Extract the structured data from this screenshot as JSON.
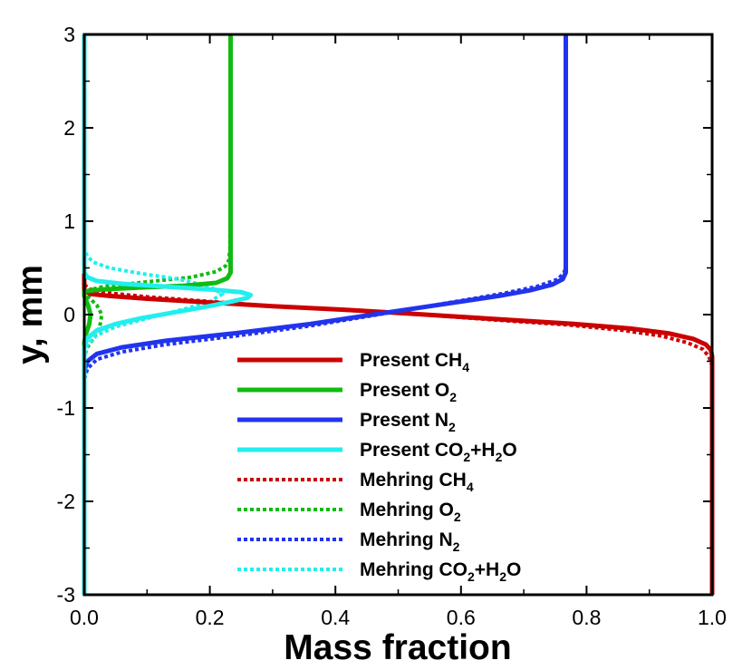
{
  "chart_data": {
    "type": "line",
    "title": "",
    "xlabel": "Mass fraction",
    "ylabel": "y, mm",
    "xlim": [
      0.0,
      1.0
    ],
    "ylim": [
      -3,
      3
    ],
    "xticks": [
      0.0,
      0.2,
      0.4,
      0.6,
      0.8,
      1.0
    ],
    "xtick_labels": [
      "0.0",
      "0.2",
      "0.4",
      "0.6",
      "0.8",
      "1.0"
    ],
    "yticks": [
      -3,
      -2,
      -1,
      0,
      1,
      2,
      3
    ],
    "ytick_labels": [
      "-3",
      "-2",
      "-1",
      "0",
      "1",
      "2",
      "3"
    ],
    "grid": false,
    "legend_position": "lower-center",
    "series": [
      {
        "name": "Present CH4",
        "label_parts": [
          [
            "Present CH",
            ""
          ],
          [
            "4",
            "sub"
          ]
        ],
        "color": "#cc0000",
        "style": "solid",
        "x": [
          1.0,
          1.0,
          0.998,
          0.99,
          0.97,
          0.93,
          0.87,
          0.78,
          0.66,
          0.52,
          0.42,
          0.3,
          0.2,
          0.1,
          0.04,
          0.01,
          0.0,
          0.0
        ],
        "y": [
          -3.0,
          -0.45,
          -0.38,
          -0.32,
          -0.26,
          -0.2,
          -0.15,
          -0.1,
          -0.05,
          0.01,
          0.05,
          0.09,
          0.13,
          0.17,
          0.2,
          0.22,
          0.26,
          3.0
        ]
      },
      {
        "name": "Present O2",
        "label_parts": [
          [
            "Present O",
            ""
          ],
          [
            "2",
            "sub"
          ]
        ],
        "color": "#11bb11",
        "style": "solid",
        "x": [
          0.0,
          0.0,
          0.0,
          0.003,
          0.008,
          0.01,
          0.006,
          0.0,
          0.0,
          0.03,
          0.09,
          0.16,
          0.21,
          0.228,
          0.233,
          0.233,
          0.233
        ],
        "y": [
          -3.0,
          -0.4,
          -0.3,
          -0.2,
          -0.1,
          0.0,
          0.1,
          0.2,
          0.25,
          0.27,
          0.29,
          0.31,
          0.34,
          0.39,
          0.45,
          0.6,
          3.0
        ]
      },
      {
        "name": "Present N2",
        "label_parts": [
          [
            "Present N",
            ""
          ],
          [
            "2",
            "sub"
          ]
        ],
        "color": "#2233ee",
        "style": "solid",
        "x": [
          0.0,
          0.0,
          0.005,
          0.02,
          0.06,
          0.13,
          0.24,
          0.36,
          0.45,
          0.53,
          0.6,
          0.66,
          0.71,
          0.745,
          0.762,
          0.767,
          0.767
        ],
        "y": [
          -3.0,
          -0.6,
          -0.5,
          -0.42,
          -0.35,
          -0.28,
          -0.2,
          -0.1,
          -0.01,
          0.07,
          0.14,
          0.2,
          0.26,
          0.32,
          0.38,
          0.45,
          3.0
        ]
      },
      {
        "name": "Present CO2+H2O",
        "label_parts": [
          [
            "Present CO",
            ""
          ],
          [
            "2",
            "sub"
          ],
          [
            "+H",
            ""
          ],
          [
            "2",
            "sub"
          ],
          [
            "O",
            ""
          ]
        ],
        "color": "#22eeee",
        "style": "solid",
        "x": [
          0.0,
          0.0,
          0.005,
          0.02,
          0.05,
          0.09,
          0.14,
          0.19,
          0.235,
          0.26,
          0.265,
          0.25,
          0.2,
          0.13,
          0.06,
          0.02,
          0.005,
          0.0,
          0.0
        ],
        "y": [
          -3.0,
          -0.35,
          -0.25,
          -0.17,
          -0.1,
          -0.04,
          0.02,
          0.08,
          0.14,
          0.18,
          0.21,
          0.24,
          0.27,
          0.3,
          0.33,
          0.36,
          0.4,
          0.45,
          3.0
        ]
      },
      {
        "name": "Mehring CH4",
        "label_parts": [
          [
            "Mehring CH",
            ""
          ],
          [
            "4",
            "sub"
          ]
        ],
        "color": "#cc0000",
        "style": "dotted",
        "x": [
          1.0,
          1.0,
          0.995,
          0.985,
          0.96,
          0.92,
          0.86,
          0.77,
          0.66,
          0.52,
          0.42,
          0.3,
          0.2,
          0.1,
          0.04,
          0.01,
          0.0,
          0.0
        ],
        "y": [
          -3.0,
          -0.55,
          -0.45,
          -0.37,
          -0.3,
          -0.23,
          -0.17,
          -0.11,
          -0.06,
          0.01,
          0.05,
          0.09,
          0.14,
          0.19,
          0.23,
          0.27,
          0.32,
          3.0
        ]
      },
      {
        "name": "Mehring O2",
        "label_parts": [
          [
            "Mehring O",
            ""
          ],
          [
            "2",
            "sub"
          ]
        ],
        "color": "#11bb11",
        "style": "dotted",
        "x": [
          0.0,
          0.0,
          0.005,
          0.015,
          0.025,
          0.028,
          0.02,
          0.008,
          0.0,
          0.0,
          0.03,
          0.1,
          0.17,
          0.21,
          0.225,
          0.23,
          0.232,
          0.233
        ],
        "y": [
          -3.0,
          -0.45,
          -0.35,
          -0.25,
          -0.12,
          0.0,
          0.1,
          0.18,
          0.22,
          0.25,
          0.3,
          0.35,
          0.4,
          0.46,
          0.52,
          0.58,
          0.7,
          3.0
        ]
      },
      {
        "name": "Mehring N2",
        "label_parts": [
          [
            "Mehring N",
            ""
          ],
          [
            "2",
            "sub"
          ]
        ],
        "color": "#2233ee",
        "style": "dotted",
        "x": [
          0.0,
          0.0,
          0.005,
          0.02,
          0.06,
          0.13,
          0.24,
          0.36,
          0.45,
          0.53,
          0.6,
          0.67,
          0.72,
          0.755,
          0.765,
          0.767,
          0.767
        ],
        "y": [
          -3.0,
          -0.7,
          -0.58,
          -0.48,
          -0.4,
          -0.32,
          -0.23,
          -0.12,
          -0.02,
          0.07,
          0.15,
          0.23,
          0.3,
          0.38,
          0.46,
          0.55,
          3.0
        ]
      },
      {
        "name": "Mehring CO2+H2O",
        "label_parts": [
          [
            "Mehring CO",
            ""
          ],
          [
            "2",
            "sub"
          ],
          [
            "+H",
            ""
          ],
          [
            "2",
            "sub"
          ],
          [
            "O",
            ""
          ]
        ],
        "color": "#22eeee",
        "style": "dotted",
        "x": [
          0.0,
          0.0,
          0.005,
          0.02,
          0.05,
          0.1,
          0.16,
          0.2,
          0.22,
          0.2,
          0.15,
          0.09,
          0.04,
          0.015,
          0.005,
          0.0,
          0.0
        ],
        "y": [
          -3.0,
          -0.45,
          -0.32,
          -0.22,
          -0.13,
          -0.04,
          0.06,
          0.14,
          0.22,
          0.3,
          0.38,
          0.44,
          0.5,
          0.56,
          0.62,
          0.7,
          3.0
        ]
      }
    ]
  }
}
